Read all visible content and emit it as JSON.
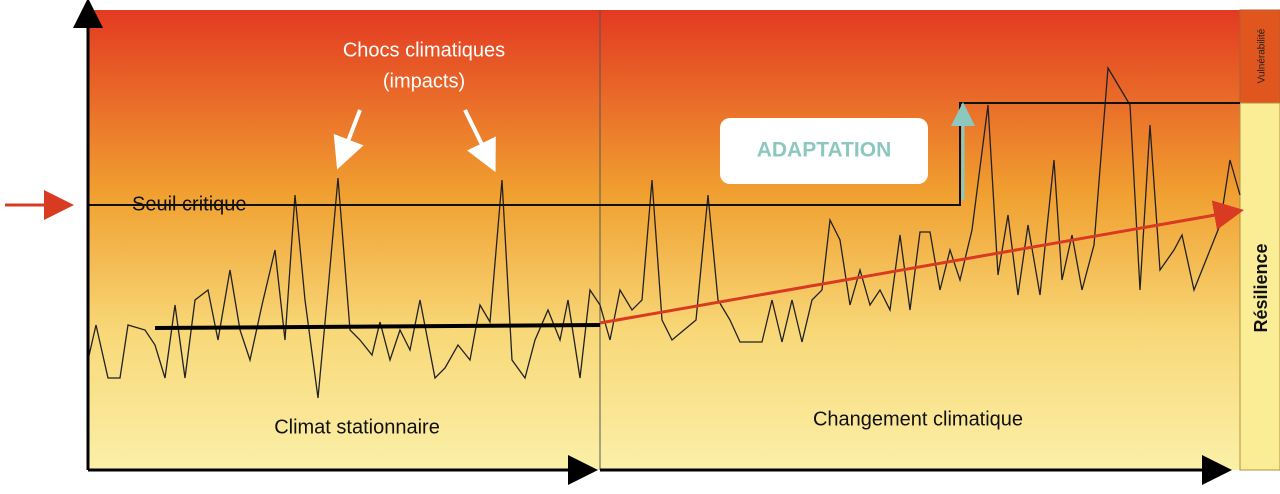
{
  "labels": {
    "shocks_line1": "Chocs climatiques",
    "shocks_line2": "(impacts)",
    "threshold": "Seuil critique",
    "adaptation": "ADAPTATION",
    "stationary": "Climat stationnaire",
    "change": "Changement climatique",
    "vulnerability": "Vulnérabilité",
    "resilience": "Résilience"
  }
}
